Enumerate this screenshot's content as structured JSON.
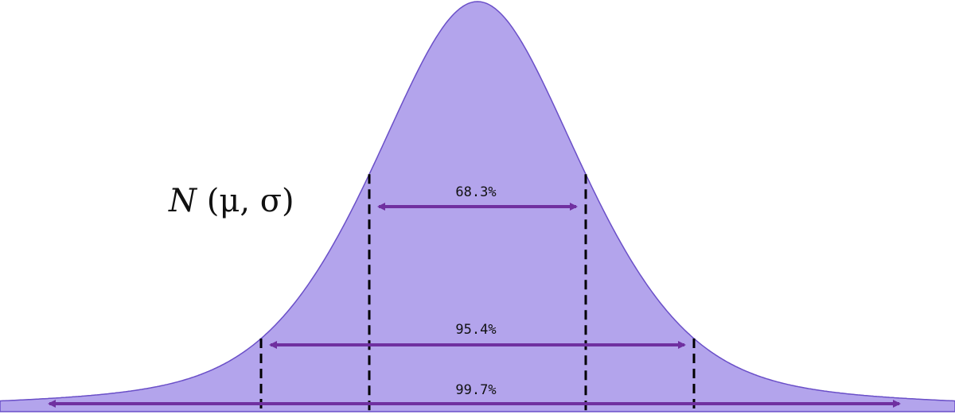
{
  "distribution_label": {
    "name": "N",
    "params": "(μ, σ)"
  },
  "colors": {
    "fill": "#b3a4ec",
    "curve_stroke": "#6a4fc8",
    "arrow": "#7030a0",
    "dashed_line": "#000000",
    "label_text": "#111111"
  },
  "curve": {
    "mean": 0,
    "sigma": 1
  },
  "bands": [
    {
      "sigma_multiple": 1,
      "label": "68.3%"
    },
    {
      "sigma_multiple": 2,
      "label": "95.4%"
    },
    {
      "sigma_multiple": 3,
      "label": "99.7%"
    }
  ]
}
